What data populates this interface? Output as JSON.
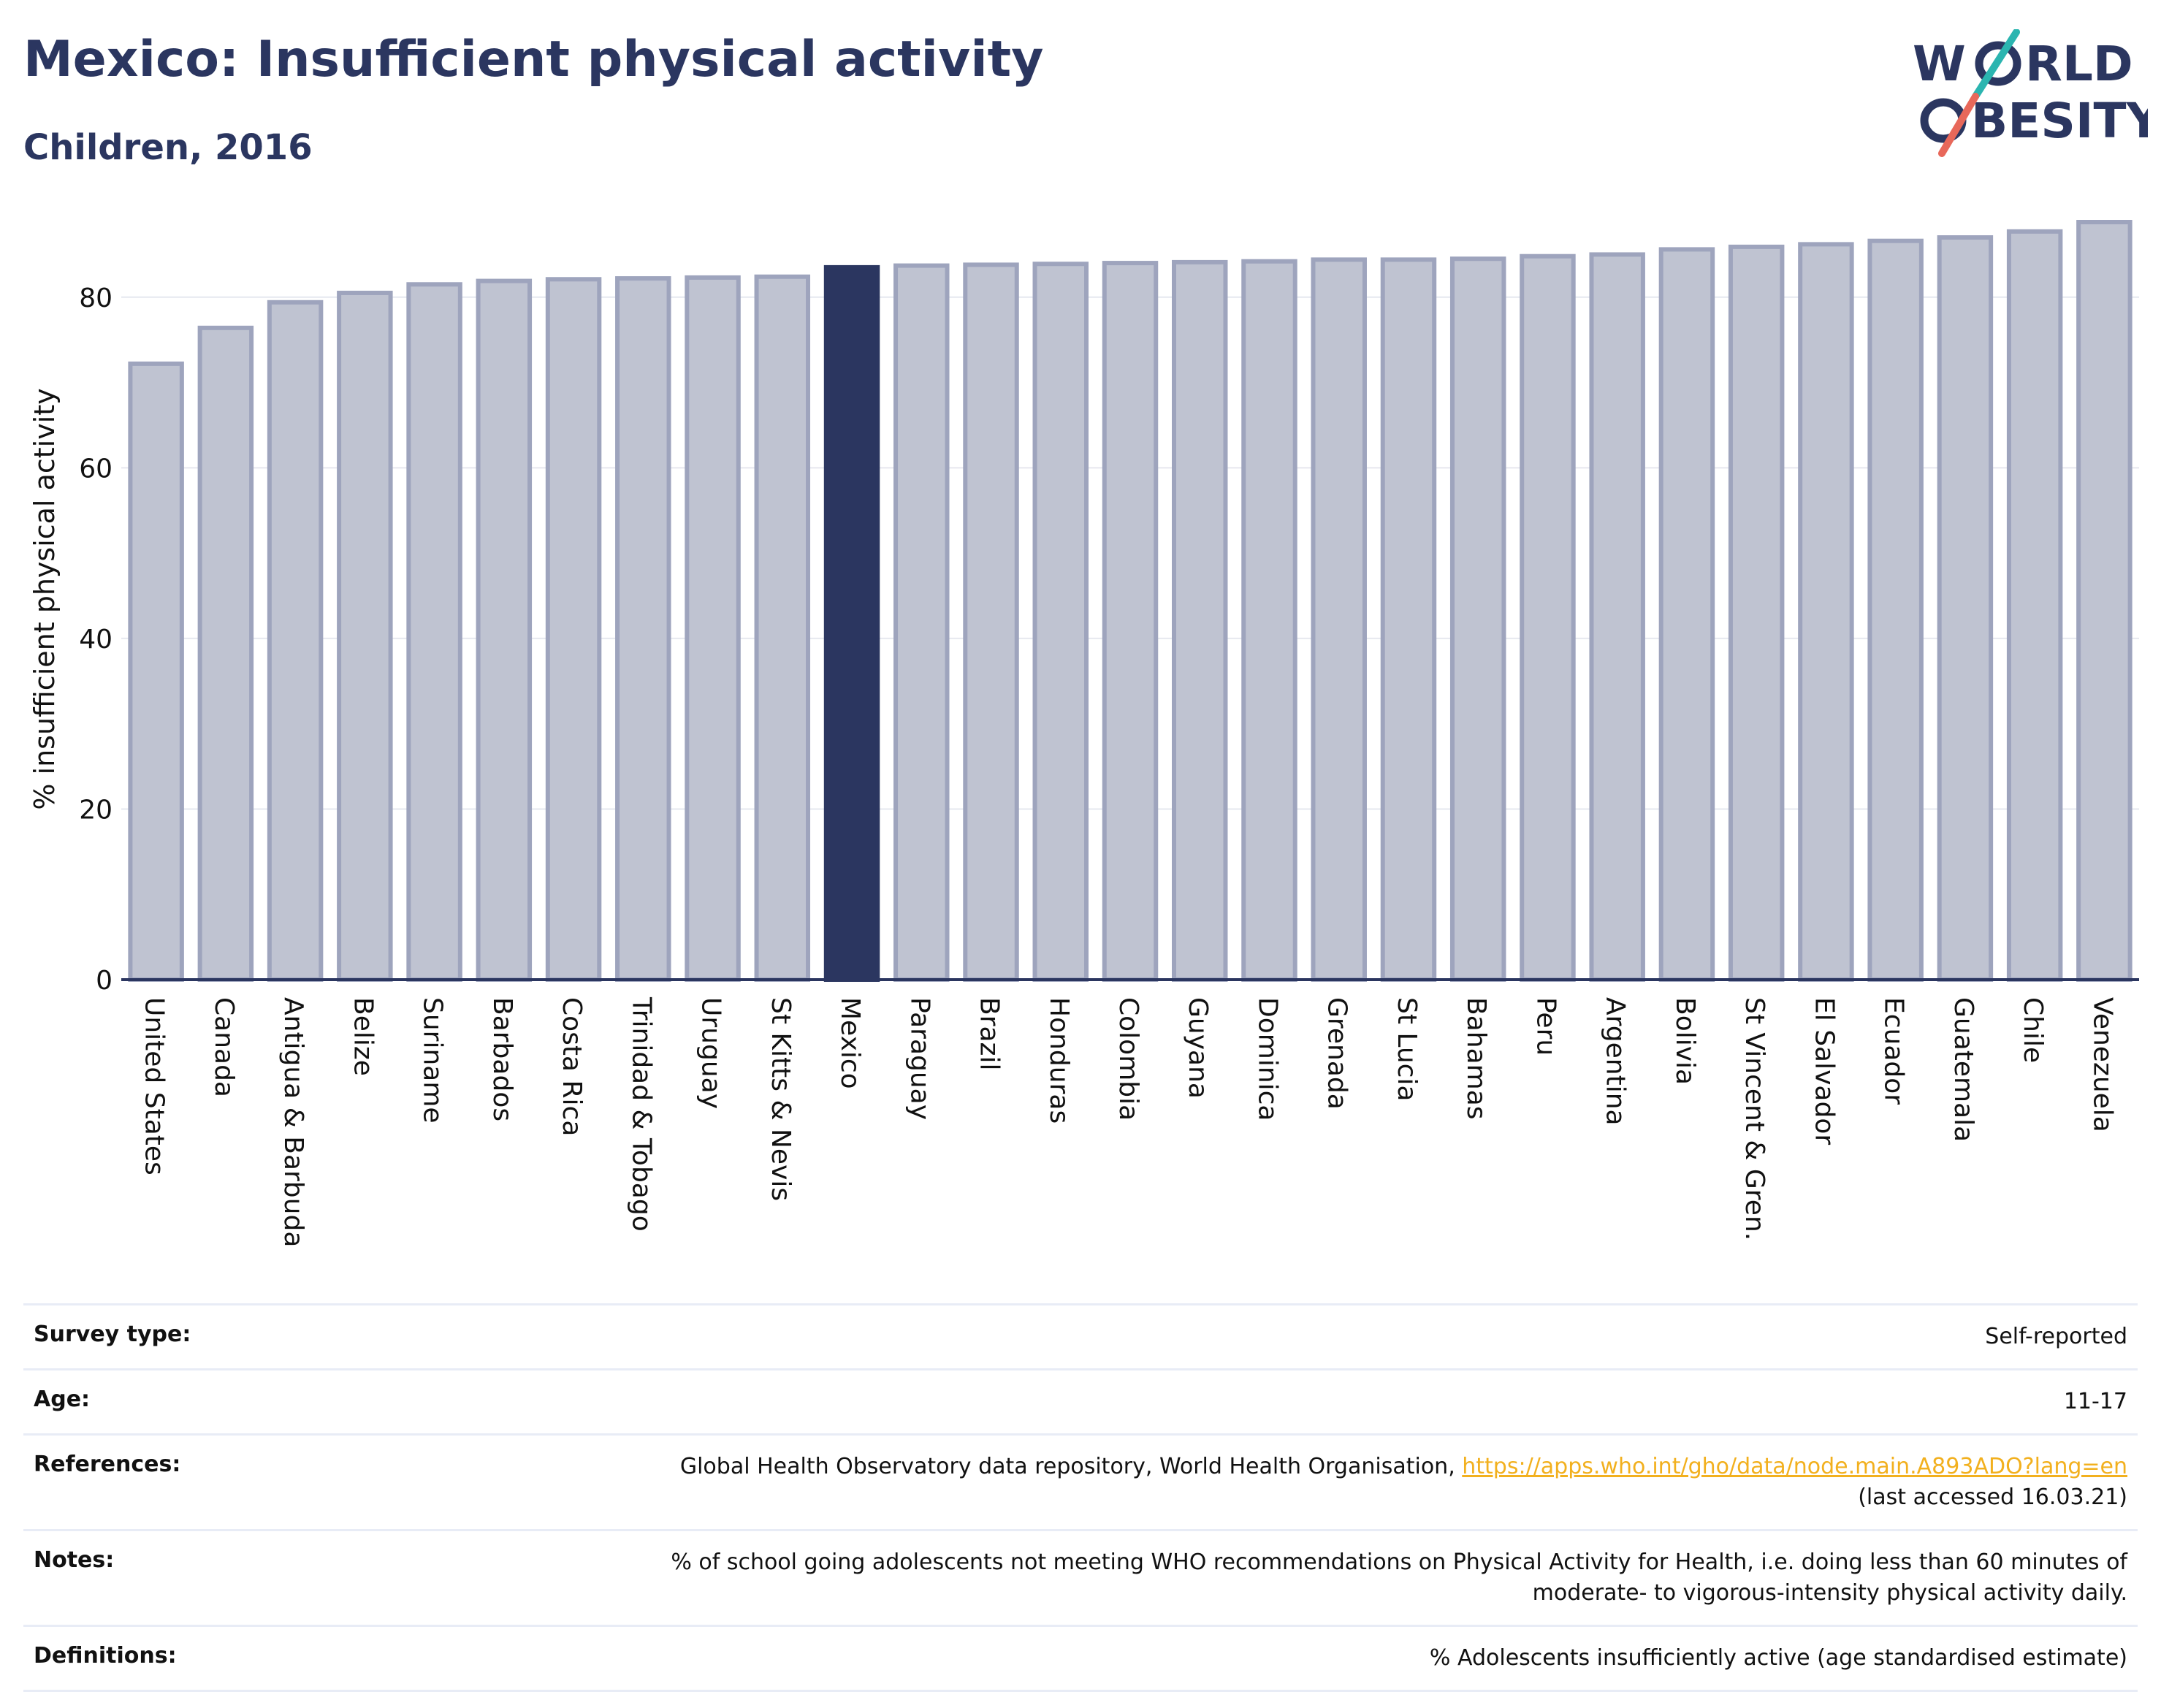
{
  "header": {
    "title": "Mexico: Insufficient physical activity",
    "subtitle": "Children, 2016"
  },
  "logo": {
    "line1_prefix": "W",
    "line1_suffix": "RLD",
    "line2_prefix": "",
    "line2_suffix": "BESITY",
    "colors": {
      "text": "#2b3660",
      "slash_top": "#2bb5b0",
      "slash_bottom": "#e8685a"
    }
  },
  "chart_data": {
    "type": "bar",
    "title": "",
    "xlabel": "",
    "ylabel": "% insufficient physical activity",
    "ylim": [
      0,
      90
    ],
    "yticks": [
      0,
      20,
      40,
      60,
      80
    ],
    "grid": true,
    "highlight": "Mexico",
    "colors": {
      "bar": "#bfc3d1",
      "bar_stroke": "#9ea4bd",
      "highlight": "#2b3660",
      "grid": "#e6e8ef",
      "axis": "#2b3660"
    },
    "categories": [
      "United States",
      "Canada",
      "Antigua & Barbuda",
      "Belize",
      "Suriname",
      "Barbados",
      "Costa Rica",
      "Trinidad & Tobago",
      "Uruguay",
      "St Kitts & Nevis",
      "Mexico",
      "Paraguay",
      "Brazil",
      "Honduras",
      "Colombia",
      "Guyana",
      "Dominica",
      "Grenada",
      "St Lucia",
      "Bahamas",
      "Peru",
      "Argentina",
      "Bolivia",
      "St Vincent & Gren.",
      "El Salvador",
      "Ecuador",
      "Guatemala",
      "Chile",
      "Venezuela"
    ],
    "values": [
      72.2,
      76.4,
      79.4,
      80.5,
      81.5,
      81.9,
      82.1,
      82.2,
      82.3,
      82.4,
      83.5,
      83.7,
      83.8,
      83.9,
      84.0,
      84.1,
      84.2,
      84.4,
      84.4,
      84.5,
      84.8,
      85.0,
      85.6,
      85.9,
      86.2,
      86.6,
      87.0,
      87.7,
      88.8
    ]
  },
  "info": {
    "survey_type_label": "Survey type:",
    "survey_type_value": "Self-reported",
    "age_label": "Age:",
    "age_value": "11-17",
    "references_label": "References:",
    "references_text": "Global Health Observatory data repository, World Health Organisation, ",
    "references_link": "https://apps.who.int/gho/data/node.main.A893ADO?lang=en",
    "references_accessed": "(last accessed 16.03.21)",
    "notes_label": "Notes:",
    "notes_line1": "% of school going adolescents not meeting WHO recommendations on Physical Activity for Health, i.e. doing less than 60 minutes of",
    "notes_line2": "moderate- to vigorous-intensity physical activity daily.",
    "definitions_label": "Definitions:",
    "definitions_value": "% Adolescents insufficiently active (age standardised estimate)"
  }
}
